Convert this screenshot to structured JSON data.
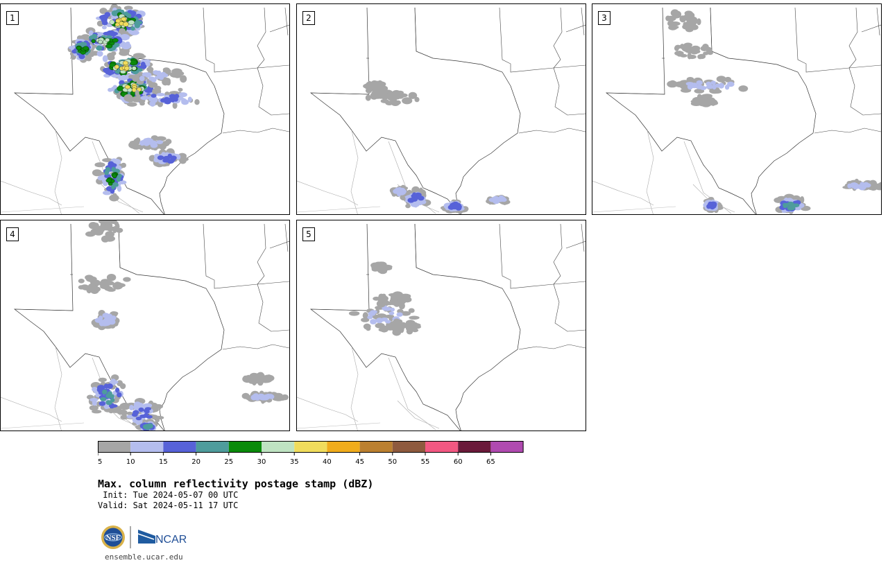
{
  "title": "Max. column reflectivity postage stamp (dBZ)",
  "init_text": " Init: Tue 2024-05-07 00 UTC",
  "valid_text": "Valid: Sat 2024-05-11 17 UTC",
  "footer_url": "ensemble.ucar.edu",
  "logos": {
    "nsf": "NSF",
    "ncar": "NCAR"
  },
  "members": [
    {
      "label": "1",
      "coverage": "heavy"
    },
    {
      "label": "2",
      "coverage": "light"
    },
    {
      "label": "3",
      "coverage": "moderate"
    },
    {
      "label": "4",
      "coverage": "moderate"
    },
    {
      "label": "5",
      "coverage": "light"
    }
  ],
  "colorbar": {
    "ticks": [
      "5",
      "10",
      "15",
      "20",
      "25",
      "30",
      "35",
      "40",
      "45",
      "50",
      "55",
      "60",
      "65"
    ],
    "colors": [
      "#a6a6a6",
      "#b4bdee",
      "#5762d8",
      "#4e9c9c",
      "#0a8a0a",
      "#bfe3c2",
      "#f0dc5c",
      "#f0ac1c",
      "#bb8030",
      "#8e5a3e",
      "#f25882",
      "#6a1a3a",
      "#b04ab0"
    ]
  }
}
